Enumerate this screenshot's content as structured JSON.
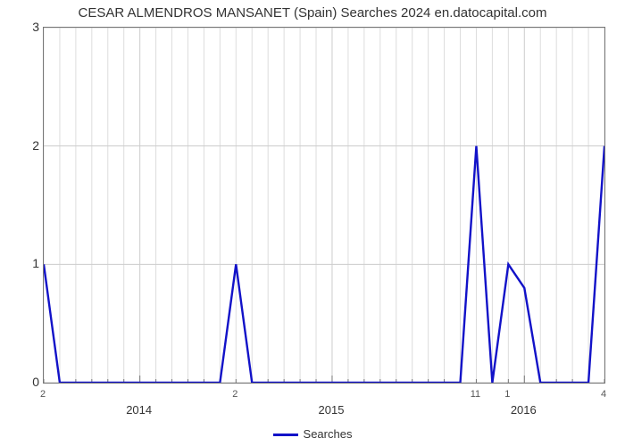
{
  "chart": {
    "type": "line",
    "title": "CESAR ALMENDROS MANSANET (Spain) Searches 2024 en.datocapital.com",
    "title_fontsize": 15,
    "title_color": "#333333",
    "background_color": "#ffffff",
    "plot_border_color": "#777777",
    "grid_color": "#dddddd",
    "grid_major_color": "#cccccc",
    "line_color": "#1212c8",
    "line_width": 2.4,
    "ylim": [
      0,
      3
    ],
    "yticks": [
      0,
      1,
      2,
      3
    ],
    "x_points": 36,
    "x_major_ticks": [
      {
        "index": 6,
        "label": "2014"
      },
      {
        "index": 18,
        "label": "2015"
      },
      {
        "index": 30,
        "label": "2016"
      }
    ],
    "x_value_labels": [
      {
        "index": 0,
        "label": "2"
      },
      {
        "index": 12,
        "label": "2"
      },
      {
        "index": 27,
        "label": "11"
      },
      {
        "index": 29,
        "label": "1"
      },
      {
        "index": 35,
        "label": "4"
      }
    ],
    "values": [
      1,
      0,
      0,
      0,
      0,
      0,
      0,
      0,
      0,
      0,
      0,
      0,
      1,
      0,
      0,
      0,
      0,
      0,
      0,
      0,
      0,
      0,
      0,
      0,
      0,
      0,
      0,
      2,
      0,
      1,
      0.8,
      0,
      0,
      0,
      0,
      2
    ],
    "legend_label": "Searches"
  }
}
